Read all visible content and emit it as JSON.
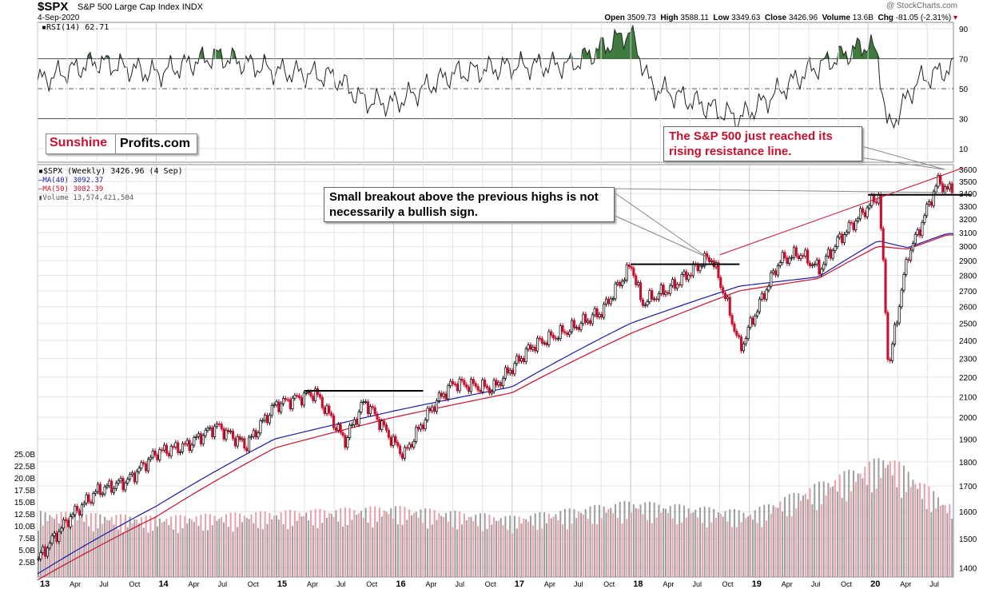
{
  "header": {
    "ticker": "$SPX",
    "name": "S&P 500 Large Cap Index",
    "exchange": "INDX",
    "date": "4-Sep-2020",
    "copyright": "@ StockCharts.com",
    "open_label": "Open",
    "open": "3509.73",
    "high_label": "High",
    "high": "3588.11",
    "low_label": "Low",
    "low": "3349.63",
    "close_label": "Close",
    "close": "3426.96",
    "volume_label": "Volume",
    "volume": "13.6B",
    "chg_label": "Chg",
    "chg": "-81.05 (-2.31%)"
  },
  "rsi_panel": {
    "label": "RSI(14) 62.71",
    "ticks": [
      "90",
      "70",
      "50",
      "30",
      "10"
    ]
  },
  "brand": {
    "part1": "Sunshine",
    "part2": "Profits.com"
  },
  "legend": {
    "main": "$SPX (Weekly) 3426.96 (4 Sep)",
    "ma40": "MA(40) 3092.37",
    "ma50": "MA(50) 3082.39",
    "volume": "Volume 13,574,421,504"
  },
  "annotations": {
    "breakout": "Small breakout above the previous highs is not necessarily a bullish sign.",
    "resistance": "The S&P 500 just reached its rising resistance line."
  },
  "colors": {
    "up": "#000000",
    "down": "#c8102e",
    "ma40": "#1a1aa6",
    "ma50": "#c8102e",
    "rsi_fill": "#3f7a3f",
    "vol_up": "#9e9e9e",
    "vol_down": "#e8a0a8",
    "grid": "#e3e3e3"
  },
  "chart_data": [
    {
      "type": "line",
      "title": "RSI(14) 62.71",
      "ylim": [
        0,
        100
      ],
      "reference_lines": [
        70,
        50,
        30
      ],
      "x": [
        "2013-01",
        "2013-07",
        "2014-01",
        "2014-07",
        "2015-01",
        "2015-07",
        "2015-10",
        "2016-01",
        "2016-07",
        "2017-01",
        "2017-07",
        "2018-01",
        "2018-03",
        "2018-10",
        "2018-12",
        "2019-07",
        "2020-01",
        "2020-02",
        "2020-03",
        "2020-06",
        "2020-09"
      ],
      "y": [
        55,
        68,
        60,
        72,
        62,
        58,
        42,
        40,
        60,
        65,
        66,
        88,
        52,
        35,
        30,
        62,
        80,
        72,
        22,
        55,
        63
      ]
    },
    {
      "type": "line",
      "title": "$SPX (Weekly) 3426.96 (4 Sep)",
      "y_scale": "log",
      "ylim": [
        1380,
        3600
      ],
      "y_ticks": [
        1400,
        1500,
        1600,
        1700,
        1800,
        1900,
        2000,
        2100,
        2200,
        2300,
        2400,
        2500,
        2600,
        2700,
        2800,
        2900,
        3000,
        3100,
        3200,
        3300,
        3400,
        3500,
        3600
      ],
      "x_tick_labels": [
        "13",
        "Apr",
        "Jul",
        "Oct",
        "14",
        "Apr",
        "Jul",
        "Oct",
        "15",
        "Apr",
        "Jul",
        "Oct",
        "16",
        "Apr",
        "Jul",
        "Oct",
        "17",
        "Apr",
        "Jul",
        "Oct",
        "18",
        "Apr",
        "Jul",
        "Oct",
        "19",
        "Apr",
        "Jul",
        "Oct",
        "20",
        "Apr",
        "Jul"
      ],
      "series": [
        {
          "name": "$SPX",
          "x": [
            "2013-01",
            "2013-04",
            "2013-07",
            "2013-10",
            "2014-01",
            "2014-04",
            "2014-07",
            "2014-10",
            "2015-01",
            "2015-05",
            "2015-08",
            "2015-10",
            "2016-01",
            "2016-02",
            "2016-05",
            "2016-07",
            "2016-11",
            "2017-03",
            "2017-07",
            "2017-10",
            "2018-01",
            "2018-02",
            "2018-05",
            "2018-09",
            "2018-10",
            "2018-12",
            "2019-04",
            "2019-06",
            "2019-08",
            "2019-10",
            "2020-01",
            "2020-02",
            "2020-03",
            "2020-05",
            "2020-06",
            "2020-08",
            "2020-09"
          ],
          "y": [
            1430,
            1570,
            1680,
            1720,
            1840,
            1870,
            1960,
            1870,
            2060,
            2120,
            1890,
            2080,
            1880,
            1830,
            2060,
            2170,
            2140,
            2370,
            2470,
            2570,
            2870,
            2620,
            2720,
            2930,
            2750,
            2350,
            2900,
            2950,
            2840,
            3050,
            3300,
            3390,
            2230,
            2950,
            3100,
            3500,
            3427
          ]
        },
        {
          "name": "MA(40) 3092.37",
          "x": [
            "2013-01",
            "2014-01",
            "2015-01",
            "2016-01",
            "2017-01",
            "2018-01",
            "2018-12",
            "2019-08",
            "2020-02",
            "2020-05",
            "2020-09"
          ],
          "y": [
            1380,
            1620,
            1900,
            2030,
            2150,
            2500,
            2730,
            2790,
            3040,
            2990,
            3092
          ]
        },
        {
          "name": "MA(50) 3082.39",
          "x": [
            "2013-01",
            "2014-01",
            "2015-01",
            "2016-01",
            "2017-01",
            "2018-01",
            "2018-12",
            "2019-08",
            "2020-02",
            "2020-05",
            "2020-09"
          ],
          "y": [
            1360,
            1580,
            1860,
            2000,
            2120,
            2440,
            2700,
            2780,
            3000,
            2980,
            3082
          ]
        }
      ],
      "annotation_lines": [
        {
          "label": "previous highs 2015",
          "y": 2130,
          "x": [
            "2015-04",
            "2016-04"
          ]
        },
        {
          "label": "previous highs 2018",
          "y": 2875,
          "x": [
            "2018-01",
            "2018-12"
          ]
        },
        {
          "label": "previous highs 2020",
          "y": 3390,
          "x": [
            "2020-01",
            "2020-09"
          ]
        },
        {
          "label": "rising resistance",
          "x": [
            "2018-10",
            "2020-09"
          ],
          "y": [
            2940,
            3600
          ]
        }
      ]
    },
    {
      "type": "bar",
      "title": "Volume 13,574,421,504",
      "ylim": [
        0,
        25000000000
      ],
      "y_ticks": [
        "2.5B",
        "5.0B",
        "7.5B",
        "10.0B",
        "12.5B",
        "15.0B",
        "17.5B",
        "20.0B",
        "22.5B",
        "25.0B"
      ],
      "x": [
        "2013",
        "2014",
        "2015",
        "2016",
        "2017",
        "2018",
        "2019",
        "2020-03",
        "2020-09"
      ],
      "values": [
        12000000000,
        11000000000,
        12000000000,
        13000000000,
        11000000000,
        14000000000,
        12000000000,
        23000000000,
        13574421504
      ]
    }
  ]
}
